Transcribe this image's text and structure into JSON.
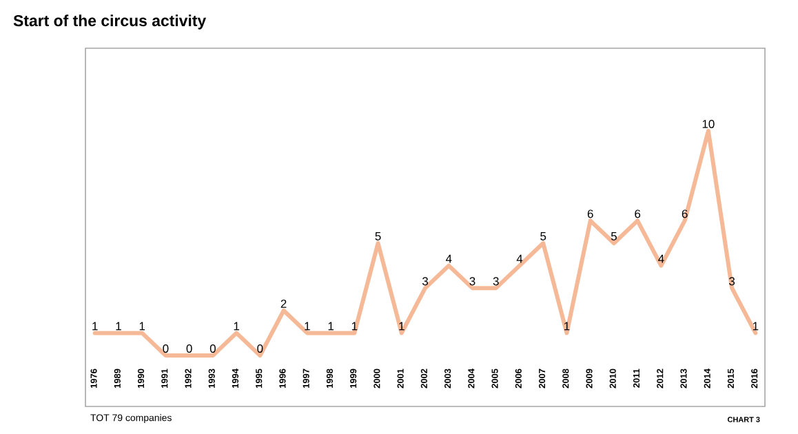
{
  "chart_data": {
    "type": "line",
    "title": "Start of the circus activity",
    "categories": [
      "1976",
      "1989",
      "1990",
      "1991",
      "1992",
      "1993",
      "1994",
      "1995",
      "1996",
      "1997",
      "1998",
      "1999",
      "2000",
      "2001",
      "2002",
      "2003",
      "2004",
      "2005",
      "2006",
      "2007",
      "2008",
      "2009",
      "2010",
      "2011",
      "2012",
      "2013",
      "2014",
      "2015",
      "2016"
    ],
    "values": [
      1,
      1,
      1,
      0,
      0,
      0,
      1,
      0,
      2,
      1,
      1,
      1,
      5,
      1,
      3,
      4,
      3,
      3,
      4,
      5,
      1,
      6,
      5,
      6,
      4,
      6,
      10,
      3,
      1
    ],
    "color": "#f5b997",
    "data_labels": true,
    "marker": "none",
    "line_style": "solid",
    "annotations": [
      "TOT 79 companies",
      "CHART 3"
    ]
  }
}
